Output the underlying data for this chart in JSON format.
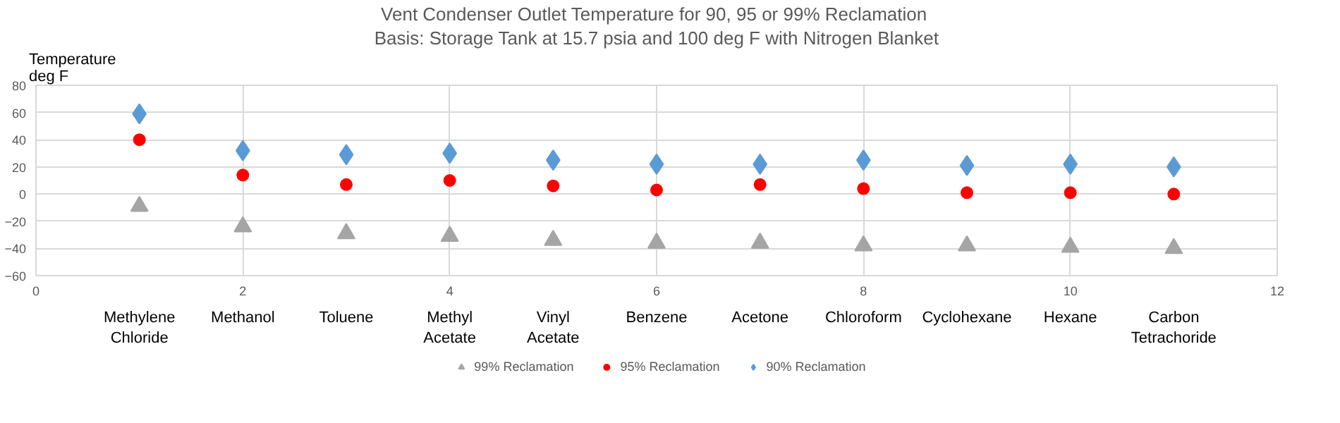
{
  "chart_data": {
    "type": "scatter",
    "title": "Vent Condenser  Outlet Temperature for 90, 95 or 99% Reclamation",
    "subtitle": "Basis: Storage Tank at 15.7 psia and 100 deg F with Nitrogen Blanket",
    "ylabel": "Temperature deg F",
    "categories": [
      "Methylene Chloride",
      "Methanol",
      "Toluene",
      "Methyl Acetate",
      "Vinyl Acetate",
      "Benzene",
      "Acetone",
      "Chloroform",
      "Cyclohexane",
      "Hexane",
      "Carbon Tetrachoride"
    ],
    "annotations": [
      "0",
      "2",
      "4",
      "6",
      "8",
      "10",
      "12"
    ],
    "ylim": [
      -60,
      80
    ],
    "yticks": [
      -60,
      -40,
      -20,
      0,
      20,
      40,
      60,
      80
    ],
    "grid": true,
    "legend": "bottom",
    "series": [
      {
        "name": "99% Reclamation",
        "color": "#a5a5a5",
        "marker": "triangle",
        "values": [
          -9,
          -24,
          -29,
          -31,
          -34,
          -36,
          -36,
          -38,
          -38,
          -39,
          -40
        ]
      },
      {
        "name": "95% Reclamation",
        "color": "#ff0000",
        "marker": "circle",
        "values": [
          40,
          14,
          7,
          10,
          6,
          3,
          7,
          4,
          1,
          1,
          0
        ]
      },
      {
        "name": "90% Reclamation",
        "color": "#5b9bd5",
        "marker": "diamond",
        "values": [
          59,
          32,
          29,
          30,
          25,
          22,
          22,
          25,
          21,
          22,
          20
        ]
      }
    ]
  }
}
